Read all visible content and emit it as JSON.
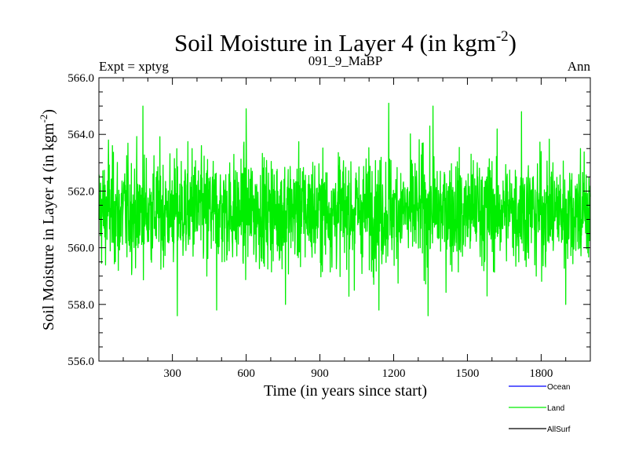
{
  "chart_data": {
    "type": "line",
    "title": "Soil Moisture in Layer 4 (in kgm",
    "title_sup": "-2",
    "title_close": ")",
    "subtitle_left": "Expt = xptyg",
    "subtitle_center": "091_9_MaBP",
    "subtitle_right": "Ann",
    "xlabel": "Time (in years since start)",
    "ylabel": "Soil Moisture in Layer 4 (in kgm",
    "ylabel_sup": "-2",
    "ylabel_close": ")",
    "xlim": [
      1,
      2000
    ],
    "ylim": [
      556.0,
      566.0
    ],
    "xticks": [
      300,
      600,
      900,
      1200,
      1500,
      1800
    ],
    "xtick_labels": [
      "300",
      "600",
      "900",
      "1200",
      "1500",
      "1800"
    ],
    "yticks": [
      556,
      558,
      560,
      562,
      564,
      566
    ],
    "ytick_labels": [
      "556.0",
      "558.0",
      "560.0",
      "562.0",
      "564.0",
      "566.0"
    ],
    "grid": false,
    "legend_position": "bottom-right",
    "series": [
      {
        "name": "Ocean",
        "color": "#0000ff",
        "values": []
      },
      {
        "name": "Land",
        "color": "#00ee00",
        "mean": 561.3,
        "x": [
          1,
          40,
          80,
          120,
          160,
          180,
          240,
          280,
          320,
          380,
          440,
          480,
          520,
          560,
          600,
          640,
          700,
          760,
          820,
          880,
          940,
          980,
          1040,
          1100,
          1140,
          1180,
          1200,
          1260,
          1320,
          1340,
          1360,
          1420,
          1480,
          1540,
          1580,
          1640,
          1700,
          1720,
          1780,
          1840,
          1900,
          1960,
          2000
        ],
        "values": [
          561.0,
          563.8,
          559.2,
          562.5,
          560.0,
          565.0,
          561.5,
          560.5,
          557.6,
          563.5,
          559.0,
          557.8,
          561.8,
          560.2,
          564.9,
          559.5,
          561.9,
          558.0,
          562.8,
          559.8,
          561.2,
          563.2,
          558.5,
          562.2,
          557.8,
          565.1,
          561.0,
          560.0,
          563.7,
          557.6,
          565.0,
          562.0,
          559.7,
          563.0,
          558.3,
          561.5,
          560.5,
          564.8,
          559.0,
          562.5,
          558.0,
          563.5,
          561.8
        ]
      },
      {
        "name": "AllSurf",
        "color": "#000000",
        "values": []
      }
    ]
  }
}
